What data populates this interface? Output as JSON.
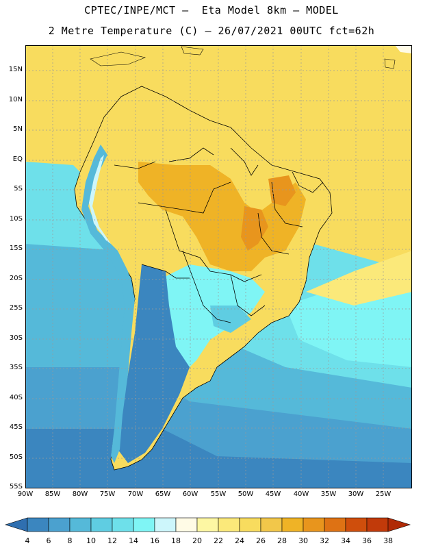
{
  "header": {
    "line1": "CPTEC/INPE/MCT –  Eta Model 8km – MODEL",
    "line2": "2 Metre Temperature (C) – 26/07/2021 00UTC fct=62h"
  },
  "map": {
    "lat_labels": [
      "15N",
      "10N",
      "5N",
      "EQ",
      "5S",
      "10S",
      "15S",
      "20S",
      "25S",
      "30S",
      "35S",
      "40S",
      "45S",
      "50S",
      "55S"
    ],
    "lon_labels": [
      "90W",
      "85W",
      "80W",
      "75W",
      "70W",
      "65W",
      "60W",
      "55W",
      "50W",
      "45W",
      "40W",
      "35W",
      "30W",
      "25W"
    ],
    "colors": {
      "grid": "#9a9a9a",
      "border": "#000000"
    }
  },
  "colorbar": {
    "levels": [
      "4",
      "6",
      "8",
      "10",
      "12",
      "14",
      "16",
      "18",
      "20",
      "22",
      "24",
      "26",
      "28",
      "30",
      "32",
      "34",
      "36",
      "38"
    ],
    "colors": [
      "#2f6fb0",
      "#3b86bf",
      "#4ba1cf",
      "#55b9d9",
      "#5fcde2",
      "#6ee0ea",
      "#7ff5f5",
      "#cdf6fb",
      "#fffbe6",
      "#fdf7a3",
      "#fbe97a",
      "#f8dc5e",
      "#f2c74a",
      "#efb326",
      "#e8951d",
      "#de7214",
      "#cf4e0c",
      "#c13a0a",
      "#b02a06"
    ]
  }
}
